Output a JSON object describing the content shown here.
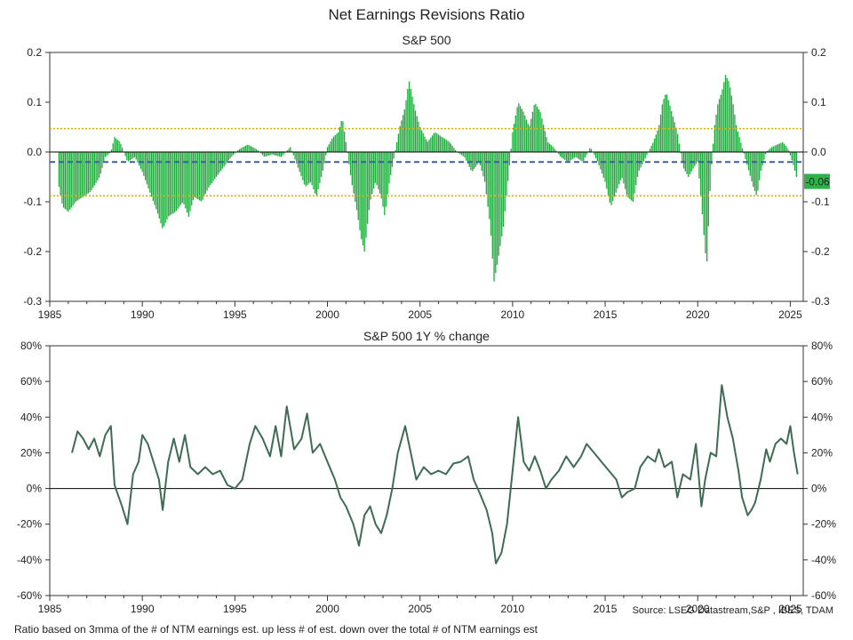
{
  "title": "Net Earnings Revisions Ratio",
  "footnote": "Ratio based on 3mma of the # of NTM earnings est. up less # of est. down over the total # of NTM earnings est",
  "source": "Source: LSEG Datastream,S&P , IBES, TDAM",
  "colors": {
    "bar": "#1faa3c",
    "avg_line": "#3b5fa0",
    "band_line": "#e0b000",
    "line": "#3f6b55",
    "last_badge": "#2db34a"
  },
  "chart_data": [
    {
      "type": "bar",
      "subtitle": "S&P 500",
      "x_range": [
        1985,
        2025.7
      ],
      "ylim": [
        -0.3,
        0.2
      ],
      "x_ticks": [
        "1985",
        "1990",
        "1995",
        "2000",
        "2005",
        "2010",
        "2015",
        "2020",
        "2025"
      ],
      "y_ticks": [
        "0.2",
        "0.1",
        "0.0",
        "-0.1",
        "-0.2",
        "-0.3"
      ],
      "average": -0.02,
      "upper_band": 0.047,
      "lower_band": -0.088,
      "last_value_label": "-0.06",
      "last_value": -0.06,
      "anchors": [
        [
          1985.5,
          -0.07
        ],
        [
          1985.7,
          -0.11
        ],
        [
          1986.0,
          -0.12
        ],
        [
          1986.4,
          -0.1
        ],
        [
          1986.8,
          -0.09
        ],
        [
          1987.2,
          -0.08
        ],
        [
          1987.7,
          -0.05
        ],
        [
          1988.0,
          -0.01
        ],
        [
          1988.3,
          0.0
        ],
        [
          1988.5,
          0.03
        ],
        [
          1988.8,
          0.02
        ],
        [
          1989.2,
          -0.02
        ],
        [
          1989.6,
          -0.01
        ],
        [
          1990.0,
          -0.04
        ],
        [
          1990.4,
          -0.08
        ],
        [
          1990.8,
          -0.12
        ],
        [
          1991.1,
          -0.155
        ],
        [
          1991.4,
          -0.13
        ],
        [
          1991.8,
          -0.12
        ],
        [
          1992.2,
          -0.1
        ],
        [
          1992.5,
          -0.13
        ],
        [
          1992.8,
          -0.09
        ],
        [
          1993.2,
          -0.1
        ],
        [
          1993.6,
          -0.07
        ],
        [
          1994.0,
          -0.05
        ],
        [
          1994.4,
          -0.03
        ],
        [
          1994.8,
          -0.01
        ],
        [
          1995.2,
          0.005
        ],
        [
          1995.7,
          0.015
        ],
        [
          1996.2,
          0.005
        ],
        [
          1996.6,
          -0.01
        ],
        [
          1997.0,
          -0.005
        ],
        [
          1997.5,
          -0.01
        ],
        [
          1998.0,
          0.01
        ],
        [
          1998.4,
          -0.03
        ],
        [
          1998.8,
          -0.07
        ],
        [
          1999.1,
          -0.06
        ],
        [
          1999.4,
          -0.09
        ],
        [
          1999.8,
          -0.03
        ],
        [
          2000.0,
          0.01
        ],
        [
          2000.3,
          0.03
        ],
        [
          2000.6,
          0.04
        ],
        [
          2000.8,
          0.07
        ],
        [
          2001.0,
          0.02
        ],
        [
          2001.3,
          -0.06
        ],
        [
          2001.6,
          -0.12
        ],
        [
          2001.8,
          -0.17
        ],
        [
          2002.0,
          -0.2
        ],
        [
          2002.3,
          -0.1
        ],
        [
          2002.6,
          -0.06
        ],
        [
          2002.9,
          -0.09
        ],
        [
          2003.1,
          -0.13
        ],
        [
          2003.3,
          -0.07
        ],
        [
          2003.6,
          -0.01
        ],
        [
          2003.9,
          0.05
        ],
        [
          2004.2,
          0.09
        ],
        [
          2004.4,
          0.145
        ],
        [
          2004.7,
          0.09
        ],
        [
          2005.0,
          0.05
        ],
        [
          2005.4,
          0.02
        ],
        [
          2005.8,
          0.04
        ],
        [
          2006.2,
          0.03
        ],
        [
          2006.6,
          0.02
        ],
        [
          2007.0,
          0.0
        ],
        [
          2007.4,
          -0.01
        ],
        [
          2007.8,
          -0.04
        ],
        [
          2008.2,
          -0.02
        ],
        [
          2008.5,
          -0.06
        ],
        [
          2008.8,
          -0.15
        ],
        [
          2009.0,
          -0.26
        ],
        [
          2009.2,
          -0.22
        ],
        [
          2009.5,
          -0.15
        ],
        [
          2009.8,
          -0.04
        ],
        [
          2010.0,
          0.04
        ],
        [
          2010.3,
          0.1
        ],
        [
          2010.6,
          0.08
        ],
        [
          2010.9,
          0.05
        ],
        [
          2011.2,
          0.1
        ],
        [
          2011.5,
          0.08
        ],
        [
          2011.9,
          0.02
        ],
        [
          2012.2,
          0.01
        ],
        [
          2012.6,
          -0.01
        ],
        [
          2013.0,
          -0.02
        ],
        [
          2013.4,
          -0.01
        ],
        [
          2013.8,
          -0.02
        ],
        [
          2014.2,
          0.01
        ],
        [
          2014.6,
          -0.02
        ],
        [
          2015.0,
          -0.06
        ],
        [
          2015.3,
          -0.11
        ],
        [
          2015.6,
          -0.08
        ],
        [
          2015.9,
          -0.05
        ],
        [
          2016.2,
          -0.09
        ],
        [
          2016.5,
          -0.1
        ],
        [
          2016.8,
          -0.04
        ],
        [
          2017.2,
          -0.01
        ],
        [
          2017.6,
          0.02
        ],
        [
          2017.9,
          0.05
        ],
        [
          2018.1,
          0.1
        ],
        [
          2018.3,
          0.12
        ],
        [
          2018.6,
          0.08
        ],
        [
          2018.9,
          0.04
        ],
        [
          2019.2,
          -0.03
        ],
        [
          2019.5,
          -0.05
        ],
        [
          2019.8,
          -0.03
        ],
        [
          2020.0,
          -0.02
        ],
        [
          2020.2,
          -0.1
        ],
        [
          2020.4,
          -0.2
        ],
        [
          2020.5,
          -0.22
        ],
        [
          2020.7,
          -0.05
        ],
        [
          2020.9,
          0.05
        ],
        [
          2021.1,
          0.1
        ],
        [
          2021.3,
          0.12
        ],
        [
          2021.5,
          0.155
        ],
        [
          2021.7,
          0.14
        ],
        [
          2021.9,
          0.1
        ],
        [
          2022.1,
          0.05
        ],
        [
          2022.4,
          0.01
        ],
        [
          2022.7,
          -0.03
        ],
        [
          2023.0,
          -0.07
        ],
        [
          2023.2,
          -0.09
        ],
        [
          2023.4,
          -0.04
        ],
        [
          2023.7,
          0.0
        ],
        [
          2024.0,
          0.01
        ],
        [
          2024.3,
          0.015
        ],
        [
          2024.6,
          0.02
        ],
        [
          2024.9,
          0.005
        ],
        [
          2025.2,
          -0.03
        ],
        [
          2025.4,
          -0.06
        ]
      ]
    },
    {
      "type": "line",
      "subtitle": "S&P 500 1Y % change",
      "x_range": [
        1985,
        2025.7
      ],
      "ylim": [
        -60,
        80
      ],
      "x_ticks": [
        "1985",
        "1990",
        "1995",
        "2000",
        "2005",
        "2010",
        "2015",
        "2020",
        "2025"
      ],
      "y_ticks": [
        "80%",
        "60%",
        "40%",
        "20%",
        "0%",
        "-20%",
        "-40%",
        "-60%"
      ],
      "points": [
        [
          1986.2,
          20
        ],
        [
          1986.5,
          32
        ],
        [
          1986.8,
          28
        ],
        [
          1987.1,
          22
        ],
        [
          1987.4,
          28
        ],
        [
          1987.7,
          18
        ],
        [
          1988.0,
          30
        ],
        [
          1988.3,
          35
        ],
        [
          1988.5,
          2
        ],
        [
          1988.9,
          -10
        ],
        [
          1989.2,
          -20
        ],
        [
          1989.5,
          8
        ],
        [
          1989.8,
          15
        ],
        [
          1990.0,
          30
        ],
        [
          1990.3,
          25
        ],
        [
          1990.6,
          15
        ],
        [
          1990.9,
          5
        ],
        [
          1991.1,
          -12
        ],
        [
          1991.4,
          15
        ],
        [
          1991.7,
          28
        ],
        [
          1992.0,
          15
        ],
        [
          1992.3,
          30
        ],
        [
          1992.6,
          12
        ],
        [
          1993.0,
          8
        ],
        [
          1993.4,
          12
        ],
        [
          1993.8,
          8
        ],
        [
          1994.2,
          10
        ],
        [
          1994.6,
          2
        ],
        [
          1995.0,
          0
        ],
        [
          1995.4,
          5
        ],
        [
          1995.8,
          25
        ],
        [
          1996.1,
          35
        ],
        [
          1996.5,
          28
        ],
        [
          1996.9,
          18
        ],
        [
          1997.2,
          35
        ],
        [
          1997.5,
          18
        ],
        [
          1997.8,
          46
        ],
        [
          1998.2,
          22
        ],
        [
          1998.6,
          28
        ],
        [
          1998.9,
          42
        ],
        [
          1999.2,
          20
        ],
        [
          1999.6,
          25
        ],
        [
          2000.0,
          15
        ],
        [
          2000.4,
          5
        ],
        [
          2000.7,
          -5
        ],
        [
          2001.0,
          -10
        ],
        [
          2001.4,
          -20
        ],
        [
          2001.7,
          -32
        ],
        [
          2002.0,
          -15
        ],
        [
          2002.3,
          -10
        ],
        [
          2002.6,
          -20
        ],
        [
          2002.9,
          -25
        ],
        [
          2003.2,
          -15
        ],
        [
          2003.5,
          0
        ],
        [
          2003.8,
          20
        ],
        [
          2004.2,
          35
        ],
        [
          2004.5,
          20
        ],
        [
          2004.8,
          5
        ],
        [
          2005.2,
          12
        ],
        [
          2005.6,
          8
        ],
        [
          2006.0,
          10
        ],
        [
          2006.4,
          8
        ],
        [
          2006.8,
          14
        ],
        [
          2007.2,
          15
        ],
        [
          2007.6,
          18
        ],
        [
          2007.9,
          5
        ],
        [
          2008.2,
          -2
        ],
        [
          2008.6,
          -12
        ],
        [
          2008.9,
          -25
        ],
        [
          2009.1,
          -42
        ],
        [
          2009.4,
          -36
        ],
        [
          2009.7,
          -20
        ],
        [
          2010.0,
          10
        ],
        [
          2010.3,
          40
        ],
        [
          2010.6,
          15
        ],
        [
          2010.9,
          10
        ],
        [
          2011.2,
          18
        ],
        [
          2011.5,
          10
        ],
        [
          2011.8,
          0
        ],
        [
          2012.1,
          5
        ],
        [
          2012.5,
          10
        ],
        [
          2012.9,
          18
        ],
        [
          2013.3,
          12
        ],
        [
          2013.7,
          18
        ],
        [
          2014.0,
          25
        ],
        [
          2014.4,
          20
        ],
        [
          2014.8,
          15
        ],
        [
          2015.2,
          10
        ],
        [
          2015.6,
          5
        ],
        [
          2015.9,
          -5
        ],
        [
          2016.2,
          -2
        ],
        [
          2016.6,
          0
        ],
        [
          2016.9,
          12
        ],
        [
          2017.3,
          18
        ],
        [
          2017.7,
          15
        ],
        [
          2017.9,
          22
        ],
        [
          2018.2,
          12
        ],
        [
          2018.6,
          15
        ],
        [
          2018.9,
          -5
        ],
        [
          2019.2,
          8
        ],
        [
          2019.6,
          5
        ],
        [
          2019.9,
          25
        ],
        [
          2020.2,
          -10
        ],
        [
          2020.4,
          5
        ],
        [
          2020.7,
          20
        ],
        [
          2021.0,
          18
        ],
        [
          2021.2,
          45
        ],
        [
          2021.3,
          58
        ],
        [
          2021.6,
          40
        ],
        [
          2021.9,
          28
        ],
        [
          2022.2,
          10
        ],
        [
          2022.4,
          -5
        ],
        [
          2022.7,
          -15
        ],
        [
          2022.9,
          -12
        ],
        [
          2023.1,
          -8
        ],
        [
          2023.4,
          5
        ],
        [
          2023.7,
          22
        ],
        [
          2023.9,
          15
        ],
        [
          2024.2,
          25
        ],
        [
          2024.5,
          28
        ],
        [
          2024.8,
          25
        ],
        [
          2025.0,
          35
        ],
        [
          2025.2,
          20
        ],
        [
          2025.4,
          8
        ]
      ]
    }
  ]
}
